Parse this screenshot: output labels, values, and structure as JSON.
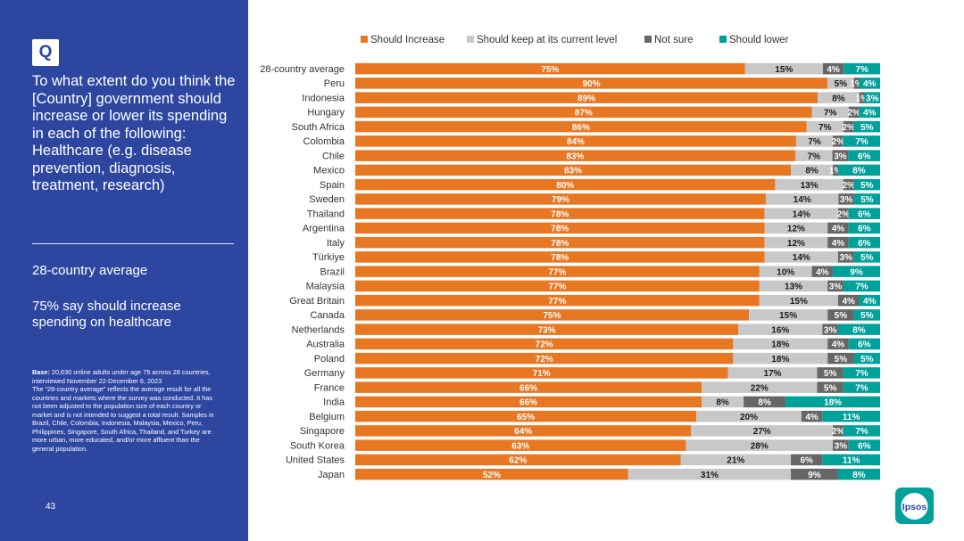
{
  "sidebar": {
    "badge": "Q",
    "question": "To what extent do you think the [Country] government should increase or lower its spending in each of the following: Healthcare (e.g. disease prevention, diagnosis, treatment, research)",
    "summary_label": "28-country average",
    "summary_text": "75% say should increase spending on healthcare",
    "base_label": "Base:",
    "base_note": " 20,630 online adults under age 75 across 28 countries, interviewed November 22-December 6, 2023\nThe “28-country average” reflects the average result for all the countries and markets where the survey was conducted. It has not been adjusted to the population size of each country or market and is not intended to suggest a total result. Samples in Brazil, Chile, Colombia, Indonesia, Malaysia, Mexico, Peru, Philippines, Singapore, South Africa, Thailand, and Turkey are more urban, more educated, and/or more affluent than the general population.",
    "page_number": "43"
  },
  "brand": {
    "name": "Ipsos",
    "color": "#00a19a"
  },
  "colors": {
    "sidebar": "#2d46a0",
    "increase": "#e87722",
    "keep": "#c8c8c8",
    "not_sure": "#666666",
    "lower": "#00a19a"
  },
  "chart_data": {
    "type": "bar",
    "orientation": "horizontal",
    "stacked": true,
    "unit": "%",
    "legend_position": "top",
    "categories": [
      "28-country average",
      "Peru",
      "Indonesia",
      "Hungary",
      "South Africa",
      "Colombia",
      "Chile",
      "Mexico",
      "Spain",
      "Sweden",
      "Thailand",
      "Argentina",
      "Italy",
      "Türkiye",
      "Brazil",
      "Malaysia",
      "Great Britain",
      "Canada",
      "Netherlands",
      "Australia",
      "Poland",
      "Germany",
      "France",
      "India",
      "Belgium",
      "Singapore",
      "South Korea",
      "United States",
      "Japan"
    ],
    "series": [
      {
        "name": "Should Increase",
        "values": [
          75,
          90,
          89,
          87,
          86,
          84,
          83,
          83,
          80,
          79,
          78,
          78,
          78,
          78,
          77,
          77,
          77,
          75,
          73,
          72,
          72,
          71,
          66,
          66,
          65,
          64,
          63,
          62,
          52
        ]
      },
      {
        "name": "Should keep at its current level",
        "values": [
          15,
          5,
          8,
          7,
          7,
          7,
          7,
          8,
          13,
          14,
          14,
          12,
          12,
          14,
          10,
          13,
          15,
          15,
          16,
          18,
          18,
          17,
          22,
          8,
          20,
          27,
          28,
          21,
          31
        ]
      },
      {
        "name": "Not sure",
        "values": [
          4,
          1,
          1,
          2,
          2,
          2,
          3,
          1,
          2,
          3,
          2,
          4,
          4,
          3,
          4,
          3,
          4,
          5,
          3,
          4,
          5,
          5,
          5,
          8,
          4,
          2,
          3,
          6,
          9
        ]
      },
      {
        "name": "Should lower",
        "values": [
          7,
          4,
          3,
          4,
          5,
          7,
          6,
          8,
          5,
          5,
          6,
          6,
          6,
          5,
          9,
          7,
          4,
          5,
          8,
          6,
          5,
          7,
          7,
          18,
          11,
          7,
          6,
          11,
          8
        ]
      }
    ]
  }
}
